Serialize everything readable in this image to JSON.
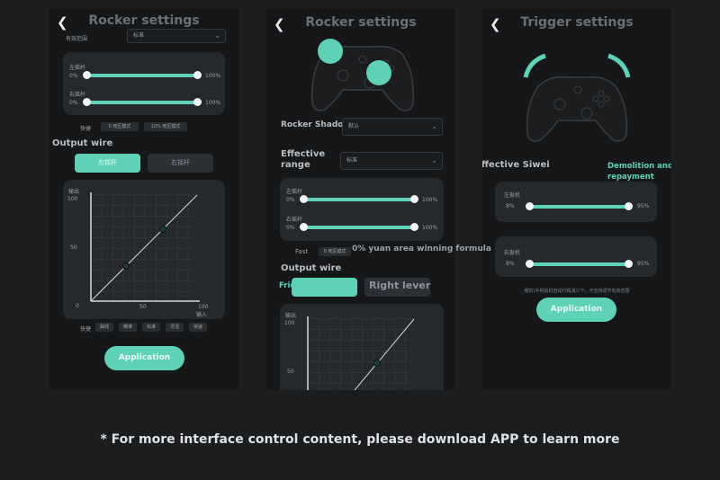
{
  "screens": [
    {
      "title": "Rocker settings",
      "top_label": "有效范围",
      "top_dropdown": "标准",
      "sliders": [
        {
          "label": "左摇杆",
          "min": "0%",
          "max": "100%",
          "low": 0,
          "high": 100
        },
        {
          "label": "右摇杆",
          "min": "0%",
          "max": "100%",
          "low": 0,
          "high": 100
        }
      ],
      "quick_label": "快捷",
      "quick_chips": [
        "0 死区模式",
        "10% 死区模式"
      ],
      "output_wire": "Output wire",
      "tabs": [
        {
          "label": "左摇杆",
          "active": true
        },
        {
          "label": "右摇杆",
          "active": false
        }
      ],
      "chart": {
        "y_label": "输出",
        "y_ticks": [
          "100",
          "50",
          "0"
        ],
        "x_ticks": [
          "50",
          "100"
        ],
        "x_label": "输入"
      },
      "curve_chips_label": "快捷",
      "curve_chips": [
        "曲线",
        "精准",
        "标准",
        "灵活",
        "快速"
      ],
      "apply": "Application"
    },
    {
      "title": "Rocker settings",
      "rocker_shadow_label": "Rocker Shadow",
      "rocker_shadow_value": "默认",
      "effective_range_label": "Effective range",
      "effective_range_value": "标准",
      "sliders": [
        {
          "label": "左摇杆",
          "min": "0%",
          "max": "100%",
          "low": 0,
          "high": 100
        },
        {
          "label": "右摇杆",
          "min": "0%",
          "max": "100%",
          "low": 0,
          "high": 100
        }
      ],
      "fast_label": "Fast",
      "fast_chip": "0 死区模式",
      "overlay": "0% yuan area winning formula",
      "output_wire": "Output wire",
      "tab_left": "Friends Rocker",
      "tab_right": "Right lever",
      "chart": {
        "y_label": "输出",
        "y_ticks": [
          "100",
          "50"
        ]
      }
    },
    {
      "title": "Trigger settings",
      "effective_label": "Effective Siwei",
      "demolition": "Demolition and repayment recognition",
      "sliders": [
        {
          "label": "左扳机",
          "min": "8%",
          "max": "95%",
          "low": 8,
          "high": 95
        },
        {
          "label": "右扳机",
          "min": "8%",
          "max": "95%",
          "low": 8,
          "high": 95
        }
      ],
      "hint": "缓扣(手柄扳机自动行程减少下，不支持调节有效范围",
      "apply": "Application"
    }
  ],
  "footer": "* For more interface control content, please download APP to learn more",
  "colors": {
    "accent": "#5fd1b7",
    "bg": "#1c1d1f",
    "screen": "#151719",
    "panel": "#26292c"
  }
}
